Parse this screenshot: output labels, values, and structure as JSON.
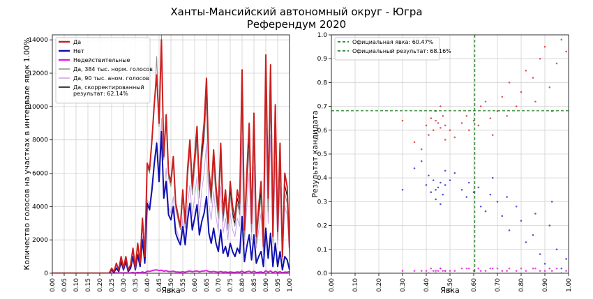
{
  "chart_data": [
    {
      "type": "line",
      "title": "Ханты-Мансийский автономный округ - Югра",
      "subtitle": "Референдум 2020",
      "x_label": "Явка",
      "y_label": "Количество голосов на участках в интервале явок 1.00%",
      "xlim": [
        0,
        1
      ],
      "ylim": [
        0,
        14300
      ],
      "grid": true,
      "legend": "upper left",
      "xticks": [
        {
          "value": 0,
          "label": "0.00"
        },
        {
          "value": 0.05,
          "label": "0.05"
        },
        {
          "value": 0.1,
          "label": "0.10"
        },
        {
          "value": 0.15,
          "label": "0.15"
        },
        {
          "value": 0.2,
          "label": "0.20"
        },
        {
          "value": 0.25,
          "label": "0.25"
        },
        {
          "value": 0.3,
          "label": "0.30"
        },
        {
          "value": 0.35,
          "label": "0.35"
        },
        {
          "value": 0.4,
          "label": "0.40"
        },
        {
          "value": 0.45,
          "label": "0.45"
        },
        {
          "value": 0.5,
          "label": "0.50"
        },
        {
          "value": 0.55,
          "label": "0.55"
        },
        {
          "value": 0.6,
          "label": "0.60"
        },
        {
          "value": 0.65,
          "label": "0.65"
        },
        {
          "value": 0.7,
          "label": "0.70"
        },
        {
          "value": 0.75,
          "label": "0.75"
        },
        {
          "value": 0.8,
          "label": "0.80"
        },
        {
          "value": 0.85,
          "label": "0.85"
        },
        {
          "value": 0.9,
          "label": "0.90"
        },
        {
          "value": 0.95,
          "label": "0.95"
        },
        {
          "value": 1,
          "label": "1.00"
        }
      ],
      "yticks": [
        0,
        2000,
        4000,
        6000,
        8000,
        10000,
        12000,
        14000
      ],
      "x": [
        0,
        0.24,
        0.25,
        0.26,
        0.27,
        0.28,
        0.29,
        0.3,
        0.31,
        0.32,
        0.33,
        0.34,
        0.35,
        0.36,
        0.37,
        0.38,
        0.39,
        0.4,
        0.41,
        0.42,
        0.43,
        0.44,
        0.45,
        0.46,
        0.47,
        0.48,
        0.49,
        0.5,
        0.51,
        0.52,
        0.53,
        0.54,
        0.55,
        0.56,
        0.57,
        0.58,
        0.59,
        0.6,
        0.61,
        0.62,
        0.63,
        0.64,
        0.65,
        0.66,
        0.67,
        0.68,
        0.69,
        0.7,
        0.71,
        0.72,
        0.73,
        0.74,
        0.75,
        0.76,
        0.77,
        0.78,
        0.79,
        0.8,
        0.81,
        0.82,
        0.83,
        0.84,
        0.85,
        0.86,
        0.87,
        0.88,
        0.89,
        0.9,
        0.91,
        0.92,
        0.93,
        0.94,
        0.95,
        0.96,
        0.97,
        0.98,
        0.99,
        1
      ],
      "series": [
        {
          "name": "Да",
          "color": "#cc1f1f",
          "width": 2,
          "values": [
            0,
            0,
            300,
            100,
            600,
            200,
            1000,
            300,
            1000,
            200,
            500,
            1500,
            300,
            1800,
            600,
            3300,
            1000,
            6600,
            6200,
            8000,
            10200,
            11900,
            9000,
            14000,
            7000,
            9500,
            6000,
            5500,
            7000,
            4200,
            3500,
            2800,
            5000,
            3000,
            6200,
            8000,
            5200,
            7000,
            8800,
            5000,
            7500,
            9000,
            11700,
            6200,
            4800,
            7400,
            5200,
            3800,
            7800,
            3600,
            5000,
            3000,
            5500,
            4000,
            3300,
            5000,
            4200,
            12200,
            2600,
            6000,
            9000,
            3000,
            9600,
            2200,
            4000,
            5500,
            1600,
            13100,
            4500,
            12500,
            2200,
            10100,
            2500,
            7800,
            1000,
            6000,
            5200,
            1500
          ]
        },
        {
          "name": "Нет",
          "color": "#1010b0",
          "width": 2,
          "values": [
            0,
            0,
            200,
            50,
            300,
            100,
            700,
            200,
            700,
            100,
            300,
            1000,
            200,
            1100,
            400,
            2000,
            600,
            4200,
            3800,
            5000,
            6600,
            7800,
            5500,
            8500,
            4500,
            5500,
            3500,
            3200,
            4000,
            2400,
            2000,
            1700,
            2800,
            1700,
            3200,
            4200,
            2600,
            3300,
            4100,
            2300,
            3100,
            3600,
            4600,
            2400,
            1800,
            2700,
            1800,
            1300,
            2600,
            1200,
            1600,
            1000,
            1800,
            1300,
            1000,
            1500,
            1200,
            3400,
            700,
            1600,
            2300,
            800,
            2300,
            600,
            1000,
            1300,
            400,
            2700,
            900,
            2400,
            400,
            1800,
            400,
            1300,
            200,
            1000,
            800,
            200
          ]
        },
        {
          "name": "Недействительные",
          "color": "#e020e0",
          "width": 2,
          "values": [
            0,
            0,
            10,
            0,
            15,
            5,
            20,
            10,
            25,
            5,
            15,
            40,
            10,
            50,
            20,
            80,
            30,
            120,
            110,
            150,
            190,
            200,
            160,
            180,
            120,
            150,
            100,
            100,
            120,
            80,
            70,
            60,
            90,
            60,
            110,
            130,
            90,
            120,
            140,
            80,
            120,
            140,
            160,
            100,
            80,
            110,
            80,
            60,
            110,
            60,
            80,
            50,
            80,
            60,
            50,
            80,
            60,
            120,
            40,
            90,
            120,
            50,
            120,
            40,
            60,
            80,
            30,
            150,
            60,
            140,
            30,
            110,
            40,
            90,
            20,
            70,
            60,
            100
          ]
        },
        {
          "name": "Да, 384 тыс. норм. голосов",
          "color": "#8c8c8c",
          "width": 1,
          "values": [
            0,
            0,
            280,
            90,
            560,
            190,
            950,
            280,
            950,
            190,
            470,
            1400,
            280,
            1700,
            560,
            3100,
            950,
            6400,
            6000,
            7800,
            10000,
            13000,
            8800,
            14300,
            6800,
            9200,
            5700,
            5200,
            6600,
            3900,
            3200,
            2600,
            4600,
            2700,
            5700,
            7300,
            4700,
            6300,
            7900,
            4500,
            6700,
            8000,
            10400,
            5500,
            4200,
            6500,
            4500,
            3300,
            6800,
            3100,
            4300,
            2600,
            4700,
            3400,
            2800,
            4200,
            3500,
            10200,
            2200,
            5000,
            7500,
            2500,
            7900,
            1800,
            3300,
            4500,
            1300,
            10700,
            3700,
            10200,
            1800,
            8200,
            2000,
            6300,
            800,
            4800,
            4200,
            1200
          ]
        },
        {
          "name": "Да, 90 тыс. аном. голосов",
          "color": "#c9a0e6",
          "width": 1,
          "values": [
            0,
            0,
            200,
            70,
            400,
            130,
            700,
            200,
            700,
            130,
            330,
            1000,
            200,
            1200,
            400,
            2200,
            700,
            4400,
            4100,
            5300,
            6800,
            7900,
            6000,
            9300,
            4600,
            6300,
            4000,
            3600,
            4600,
            2800,
            2300,
            1900,
            3300,
            2000,
            4100,
            5300,
            3400,
            4600,
            5800,
            3300,
            5000,
            6000,
            7800,
            4100,
            3200,
            4900,
            3400,
            2500,
            5200,
            2400,
            3300,
            2000,
            3600,
            2600,
            2200,
            3300,
            2800,
            8100,
            1700,
            4000,
            6000,
            2000,
            6400,
            1500,
            2600,
            3600,
            1100,
            8700,
            3000,
            8300,
            1500,
            6700,
            1700,
            5200,
            700,
            4000,
            3500,
            1000
          ]
        },
        {
          "name": "Да, скорректированный\nрезультат: 62.14%",
          "color": "#000000",
          "width": 1,
          "values": [
            0,
            0,
            300,
            100,
            600,
            200,
            1000,
            300,
            1000,
            200,
            500,
            1500,
            300,
            1800,
            600,
            3200,
            1000,
            6500,
            6100,
            7900,
            10100,
            11800,
            8900,
            13900,
            6900,
            9400,
            5900,
            5400,
            6800,
            4100,
            3400,
            2700,
            4700,
            2800,
            5800,
            7500,
            4900,
            6600,
            8300,
            4700,
            7000,
            8400,
            10900,
            5800,
            4400,
            6900,
            4800,
            3500,
            7200,
            3300,
            4600,
            2800,
            5000,
            3600,
            3000,
            4500,
            3800,
            11000,
            2300,
            5400,
            8100,
            2700,
            8600,
            2000,
            3600,
            4900,
            1400,
            11700,
            4000,
            11100,
            1900,
            9000,
            2200,
            6900,
            900,
            5300,
            4600,
            1300
          ]
        }
      ]
    },
    {
      "type": "scatter",
      "x_label": "Явка",
      "y_label": "Результат кандидата",
      "xlim": [
        0,
        1
      ],
      "ylim": [
        0,
        1
      ],
      "grid": true,
      "legend": "upper left",
      "xticks": [
        {
          "value": 0,
          "label": "0.00"
        },
        {
          "value": 0.1,
          "label": "0.10"
        },
        {
          "value": 0.2,
          "label": "0.20"
        },
        {
          "value": 0.3,
          "label": "0.30"
        },
        {
          "value": 0.4,
          "label": "0.40"
        },
        {
          "value": 0.5,
          "label": "0.50"
        },
        {
          "value": 0.6,
          "label": "0.60"
        },
        {
          "value": 0.7,
          "label": "0.70"
        },
        {
          "value": 0.8,
          "label": "0.80"
        },
        {
          "value": 0.9,
          "label": "0.90"
        },
        {
          "value": 1,
          "label": "1.00"
        }
      ],
      "yticks": [
        {
          "value": 0,
          "label": "0.0"
        },
        0.1,
        0.2,
        0.3,
        0.4,
        0.5,
        0.6,
        0.7,
        0.8,
        0.9,
        {
          "value": 1,
          "label": "1.0"
        }
      ],
      "reference_lines": [
        {
          "axis": "x",
          "value": 0.6047,
          "label": "Официальная явка: 60.47%",
          "color": "#1e7d1e"
        },
        {
          "axis": "y",
          "value": 0.6816,
          "label": "Официальный результат: 68.16%",
          "color": "#1e7d1e"
        }
      ],
      "series": [
        {
          "color": "#e03030",
          "x": [
            0.4,
            0.42,
            0.43,
            0.44,
            0.45,
            0.46,
            0.47,
            0.48,
            0.41,
            0.44,
            0.46,
            0.5,
            0.52,
            0.55,
            0.57,
            0.6,
            0.62,
            0.63,
            0.65,
            0.67,
            0.7,
            0.72,
            0.75,
            0.78,
            0.8,
            0.82,
            0.85,
            0.88,
            0.9,
            0.92,
            0.95,
            0.97,
            0.35,
            0.3,
            0.38,
            0.58,
            0.68,
            0.74,
            0.86,
            0.93,
            0.99,
            0.48
          ],
          "values": [
            0.62,
            0.65,
            0.6,
            0.64,
            0.63,
            0.61,
            0.66,
            0.62,
            0.58,
            0.68,
            0.7,
            0.6,
            0.57,
            0.63,
            0.66,
            0.64,
            0.62,
            0.7,
            0.72,
            0.65,
            0.68,
            0.74,
            0.8,
            0.7,
            0.76,
            0.85,
            0.82,
            0.9,
            0.95,
            0.78,
            0.88,
            0.98,
            0.55,
            0.64,
            0.52,
            0.6,
            0.58,
            0.66,
            0.72,
            0.68,
            0.93,
            0.56
          ]
        },
        {
          "color": "#3030d0",
          "x": [
            0.4,
            0.42,
            0.43,
            0.44,
            0.45,
            0.46,
            0.47,
            0.48,
            0.41,
            0.44,
            0.46,
            0.5,
            0.52,
            0.55,
            0.57,
            0.6,
            0.62,
            0.63,
            0.65,
            0.67,
            0.7,
            0.72,
            0.75,
            0.78,
            0.8,
            0.82,
            0.85,
            0.88,
            0.9,
            0.92,
            0.95,
            0.97,
            0.35,
            0.3,
            0.38,
            0.58,
            0.68,
            0.74,
            0.86,
            0.93,
            0.99,
            0.48
          ],
          "values": [
            0.37,
            0.34,
            0.39,
            0.35,
            0.36,
            0.38,
            0.33,
            0.37,
            0.41,
            0.31,
            0.29,
            0.39,
            0.42,
            0.35,
            0.32,
            0.34,
            0.36,
            0.28,
            0.26,
            0.33,
            0.3,
            0.24,
            0.18,
            0.28,
            0.22,
            0.13,
            0.16,
            0.08,
            0.04,
            0.2,
            0.1,
            0.02,
            0.44,
            0.35,
            0.47,
            0.38,
            0.4,
            0.32,
            0.25,
            0.3,
            0.06,
            0.43
          ]
        },
        {
          "color": "#e020e0",
          "x": [
            0.4,
            0.42,
            0.43,
            0.44,
            0.45,
            0.46,
            0.47,
            0.48,
            0.41,
            0.44,
            0.46,
            0.5,
            0.52,
            0.55,
            0.57,
            0.6,
            0.62,
            0.63,
            0.65,
            0.67,
            0.7,
            0.72,
            0.75,
            0.78,
            0.8,
            0.82,
            0.85,
            0.88,
            0.9,
            0.92,
            0.95,
            0.97,
            0.35,
            0.3,
            0.38,
            0.58,
            0.68,
            0.74,
            0.86,
            0.93,
            0.99,
            0.48
          ],
          "values": [
            0.01,
            0.02,
            0.01,
            0.0,
            0.01,
            0.02,
            0.01,
            0.01,
            0.0,
            0.01,
            0.02,
            0.01,
            0.01,
            0.02,
            0.02,
            0.01,
            0.02,
            0.01,
            0.01,
            0.02,
            0.02,
            0.01,
            0.02,
            0.01,
            0.02,
            0.01,
            0.02,
            0.01,
            0.01,
            0.02,
            0.02,
            0.0,
            0.01,
            0.01,
            0.01,
            0.02,
            0.02,
            0.01,
            0.02,
            0.01,
            0.01,
            0.01
          ]
        }
      ]
    }
  ]
}
